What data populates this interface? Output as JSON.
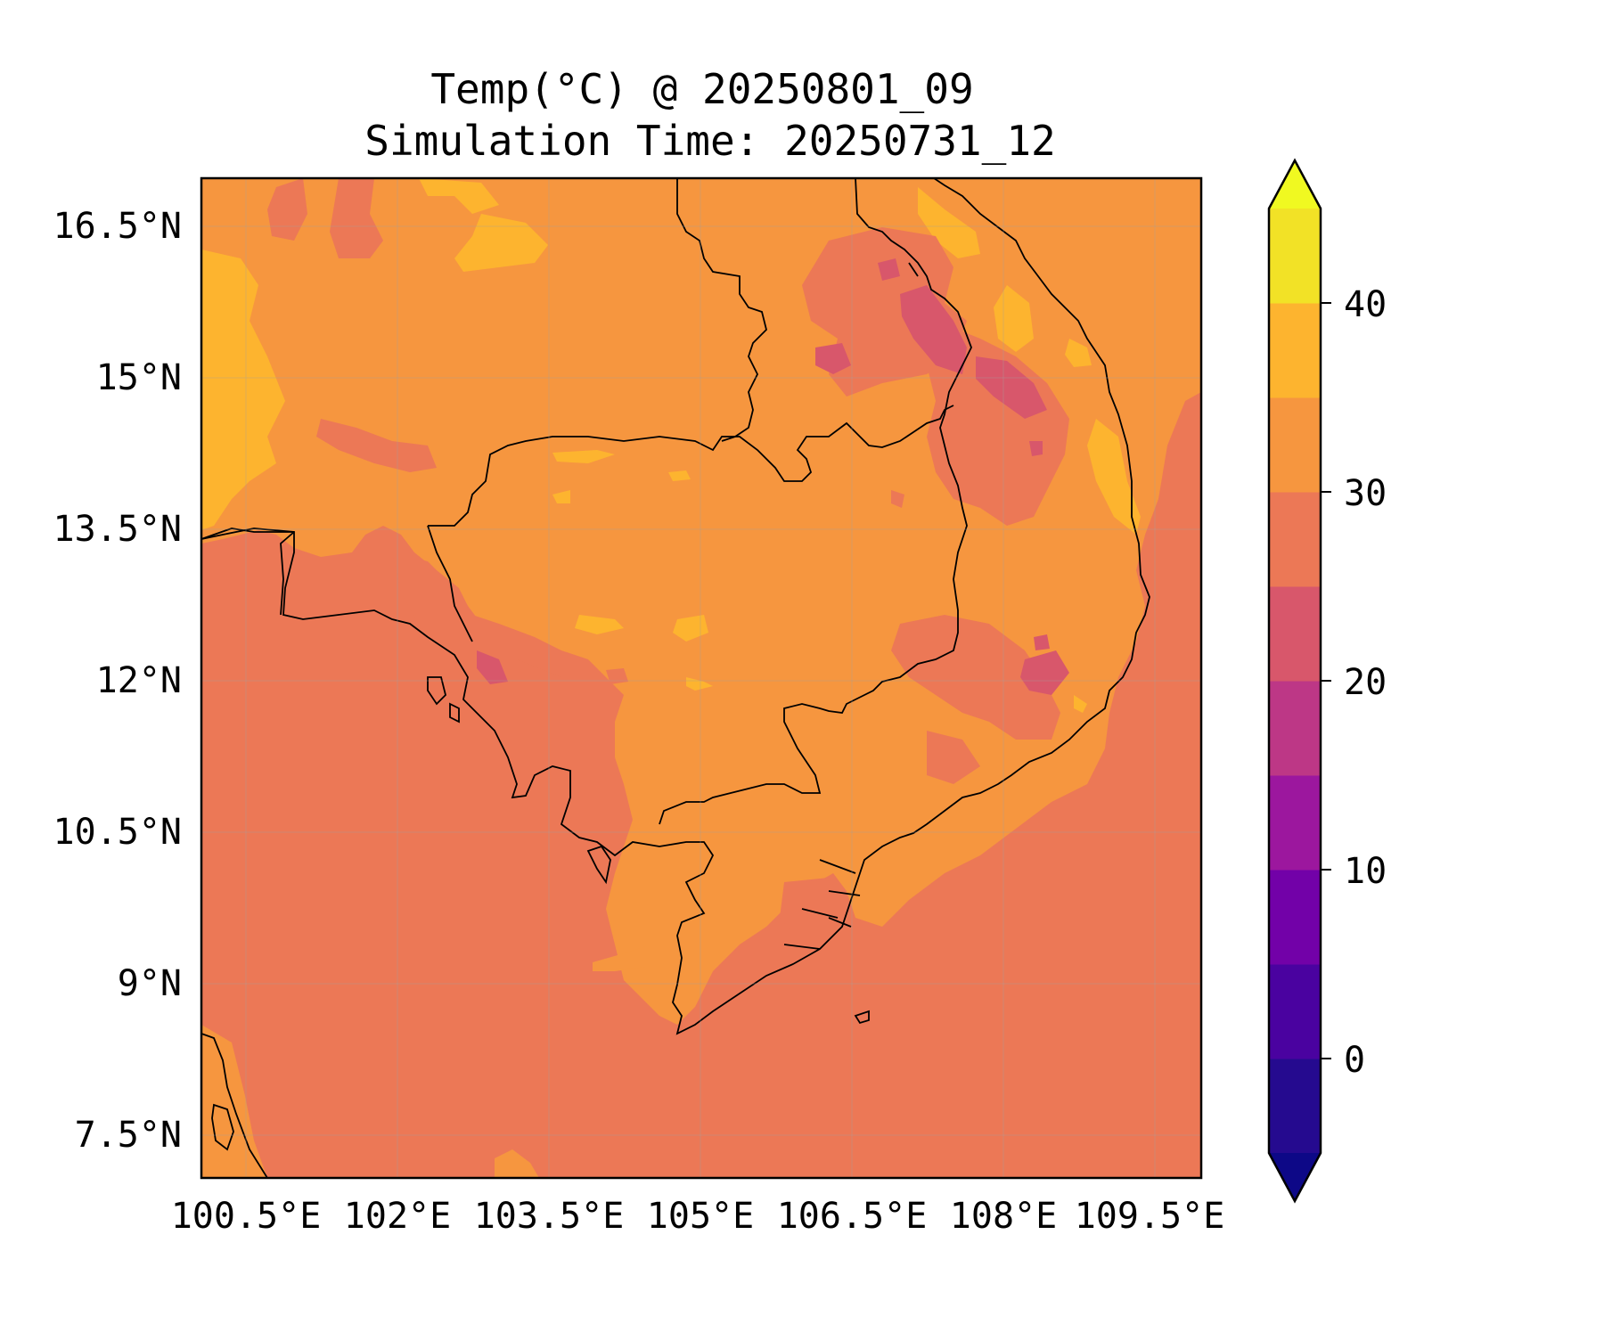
{
  "title": {
    "line1": "Temp(°C) @ 20250801_09",
    "line2": "Simulation Time: 20250731_12"
  },
  "map": {
    "x_tick_labels": [
      "100.5°E",
      "102°E",
      "103.5°E",
      "105°E",
      "106.5°E",
      "108°E",
      "109.5°E"
    ],
    "y_tick_labels": [
      "16.5°N",
      "15°N",
      "13.5°N",
      "12°N",
      "10.5°N",
      "9°N",
      "7.5°N"
    ],
    "background_color": "#ec7856"
  },
  "colorbar": {
    "tick_labels": [
      "40",
      "30",
      "20",
      "10",
      "0"
    ],
    "levels": [
      -5,
      0,
      5,
      10,
      15,
      20,
      25,
      30,
      35,
      40,
      45
    ],
    "band_colors": [
      "#250a8f",
      "#4a02a0",
      "#7201a8",
      "#9c179e",
      "#bd3786",
      "#d8576b",
      "#ec7856",
      "#f6963f",
      "#fdb42f",
      "#f2e226"
    ],
    "under_color": "#0d0887",
    "over_color": "#f0f921"
  },
  "fields": {
    "land_warm": "#f6963f",
    "hot": "#fdb42f",
    "cool": "#d8576b",
    "mild": "#ec7856"
  }
}
